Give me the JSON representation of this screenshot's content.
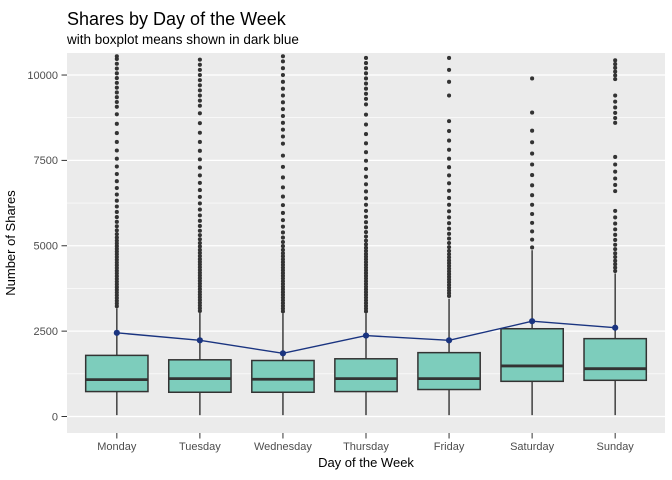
{
  "chart": {
    "title": "Shares by Day of the Week",
    "subtitle": "with boxplot means shown in dark blue",
    "xlabel": "Day of the Week",
    "ylabel": "Number of Shares"
  },
  "chart_data": {
    "type": "boxplot",
    "title": "Shares by Day of the Week",
    "subtitle": "with boxplot means shown in dark blue",
    "xlabel": "Day of the Week",
    "ylabel": "Number of Shares",
    "legend_position": "none",
    "grid": true,
    "categories": [
      "Monday",
      "Tuesday",
      "Wednesday",
      "Thursday",
      "Friday",
      "Saturday",
      "Sunday"
    ],
    "y_axis": {
      "tick_values": [
        0,
        2500,
        5000,
        7500,
        10000
      ],
      "tick_labels": [
        "0",
        "2500",
        "5000",
        "7500",
        "10000"
      ],
      "minor_tick_values": [
        1250,
        3750,
        6250,
        8750
      ],
      "range": [
        -490,
        10640
      ]
    },
    "means": [
      2450,
      2230,
      1850,
      2370,
      2230,
      2790,
      2600
    ],
    "series": [
      {
        "name": "Monday",
        "whisker_low": 40,
        "q1": 730,
        "median": 1080,
        "q3": 1790,
        "whisker_high": 3170,
        "mean": 2450,
        "outliers": [
          3230,
          3310,
          3390,
          3470,
          3550,
          3630,
          3710,
          3790,
          3870,
          3950,
          4030,
          4110,
          4190,
          4270,
          4350,
          4430,
          4510,
          4590,
          4670,
          4750,
          4830,
          4910,
          4990,
          5070,
          5150,
          5240,
          5340,
          5450,
          5570,
          5700,
          5840,
          5990,
          6150,
          6320,
          6500,
          6690,
          6890,
          7100,
          7320,
          7550,
          7790,
          8040,
          8300,
          8570,
          8850,
          9070,
          9210,
          9350,
          9490,
          9630,
          9770,
          9910,
          10050,
          10190,
          10330,
          10470,
          10550
        ]
      },
      {
        "name": "Tuesday",
        "whisker_low": 40,
        "q1": 710,
        "median": 1110,
        "q3": 1660,
        "whisker_high": 3030,
        "mean": 2230,
        "outliers": [
          3090,
          3170,
          3250,
          3330,
          3410,
          3490,
          3570,
          3650,
          3730,
          3810,
          3890,
          3970,
          4050,
          4130,
          4210,
          4290,
          4370,
          4450,
          4530,
          4610,
          4700,
          4790,
          4880,
          4980,
          5080,
          5190,
          5310,
          5440,
          5580,
          5730,
          5890,
          6060,
          6240,
          6430,
          6630,
          6840,
          7060,
          7290,
          7530,
          7780,
          8040,
          8310,
          8590,
          8880,
          9100,
          9250,
          9400,
          9550,
          9700,
          9850,
          10000,
          10150,
          10300,
          10450
        ]
      },
      {
        "name": "Wednesday",
        "whisker_low": 40,
        "q1": 710,
        "median": 1090,
        "q3": 1640,
        "whisker_high": 3020,
        "mean": 1850,
        "outliers": [
          3080,
          3160,
          3240,
          3320,
          3400,
          3480,
          3560,
          3640,
          3720,
          3800,
          3880,
          3960,
          4040,
          4120,
          4200,
          4280,
          4360,
          4440,
          4520,
          4600,
          4690,
          4780,
          4880,
          4990,
          5110,
          5240,
          5390,
          5560,
          5750,
          5960,
          6190,
          6440,
          6710,
          7000,
          7310,
          7640,
          7990,
          8200,
          8400,
          8600,
          8800,
          9000,
          9200,
          9400,
          9600,
          9800,
          10000,
          10200,
          10400,
          10550
        ]
      },
      {
        "name": "Thursday",
        "whisker_low": 40,
        "q1": 730,
        "median": 1110,
        "q3": 1690,
        "whisker_high": 3020,
        "mean": 2370,
        "outliers": [
          3080,
          3160,
          3240,
          3320,
          3400,
          3480,
          3560,
          3640,
          3720,
          3800,
          3880,
          3960,
          4040,
          4120,
          4200,
          4280,
          4360,
          4440,
          4520,
          4600,
          4680,
          4760,
          4850,
          4940,
          5040,
          5150,
          5270,
          5400,
          5540,
          5690,
          5850,
          6020,
          6200,
          6390,
          6590,
          6800,
          7020,
          7250,
          7490,
          7740,
          8000,
          8270,
          8550,
          8840,
          9140,
          9300,
          9450,
          9600,
          9750,
          9900,
          10050,
          10200,
          10350,
          10500
        ]
      },
      {
        "name": "Friday",
        "whisker_low": 40,
        "q1": 790,
        "median": 1110,
        "q3": 1870,
        "whisker_high": 3450,
        "mean": 2230,
        "outliers": [
          3530,
          3610,
          3690,
          3770,
          3850,
          3930,
          4010,
          4090,
          4170,
          4250,
          4330,
          4410,
          4490,
          4570,
          4660,
          4750,
          4850,
          4960,
          5080,
          5210,
          5350,
          5500,
          5660,
          5830,
          6010,
          6200,
          6400,
          6610,
          6830,
          7060,
          7300,
          7550,
          7810,
          8080,
          8360,
          8650,
          9400,
          9800,
          10150,
          10500
        ]
      },
      {
        "name": "Saturday",
        "whisker_low": 40,
        "q1": 1030,
        "median": 1480,
        "q3": 2570,
        "whisker_high": 4870,
        "mean": 2790,
        "outliers": [
          4950,
          5180,
          5420,
          5670,
          5930,
          6200,
          6480,
          6770,
          7070,
          7380,
          7700,
          8030,
          8370,
          8900,
          9900
        ]
      },
      {
        "name": "Sunday",
        "whisker_low": 40,
        "q1": 1060,
        "median": 1400,
        "q3": 2280,
        "whisker_high": 4190,
        "mean": 2600,
        "outliers": [
          4260,
          4360,
          4460,
          4560,
          4670,
          4780,
          4900,
          5030,
          5170,
          5320,
          5480,
          5650,
          5830,
          6020,
          6600,
          6780,
          6970,
          7170,
          7380,
          7600,
          8600,
          8740,
          8890,
          9050,
          9220,
          9400,
          9880,
          9990,
          10100,
          10210,
          10320,
          10430
        ]
      }
    ],
    "style": {
      "box_fill": "#7DCDBC",
      "box_stroke": "#333333",
      "median_color": "#333333",
      "whisker_color": "#333333",
      "outlier_color": "#333333",
      "mean_color": "#1A3480",
      "panel_background": "#EBEBEB",
      "grid_color": "#FFFFFF",
      "tick_label_color": "#4D4D4D",
      "axis_tick_color": "#333333"
    }
  }
}
